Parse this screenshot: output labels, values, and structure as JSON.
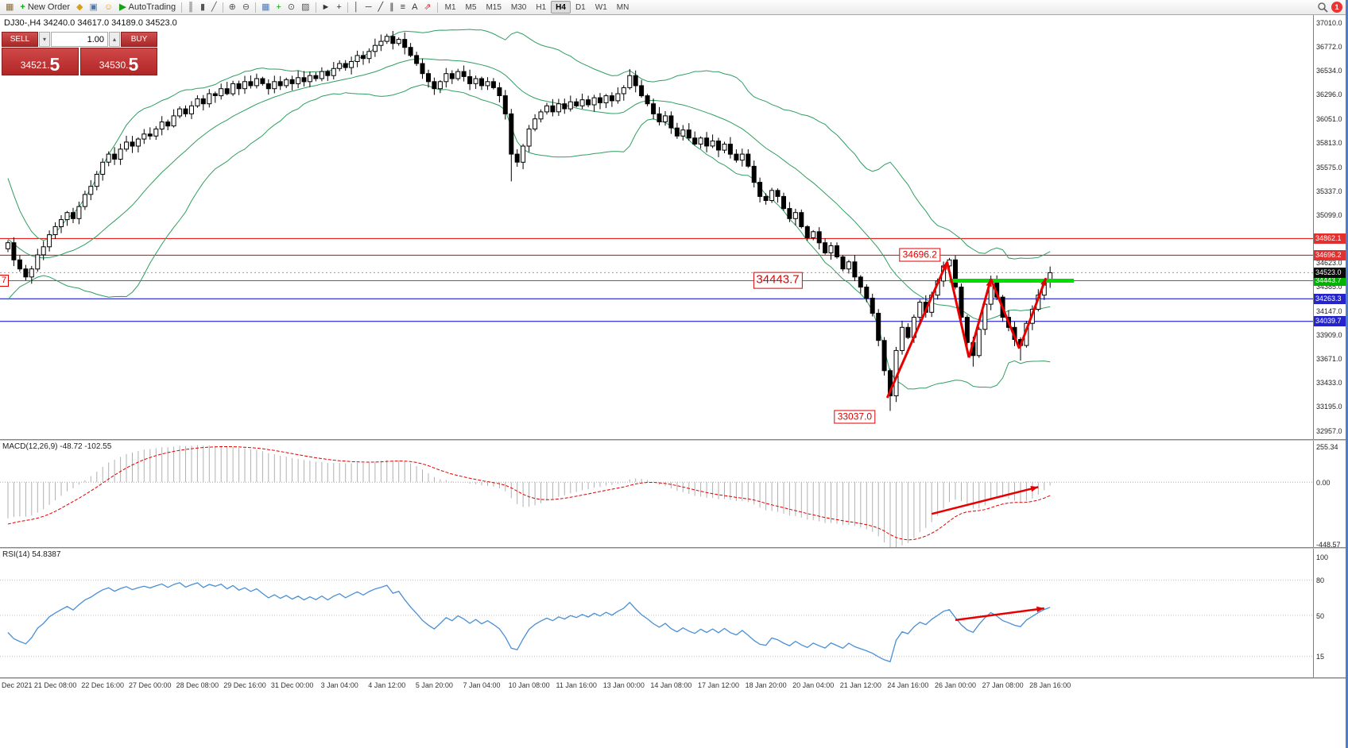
{
  "toolbar": {
    "items": [
      {
        "name": "new-chart-icon",
        "glyph": "▦",
        "color": "#8a6d3b"
      },
      {
        "name": "new-order-button",
        "label": "New Order",
        "icon": "+",
        "icon_color": "#18a018"
      },
      {
        "name": "expert-advisors-icon",
        "glyph": "◆",
        "color": "#d4a017"
      },
      {
        "name": "community-icon",
        "glyph": "▣",
        "color": "#4a7ab5"
      },
      {
        "name": "metaeditor-icon",
        "glyph": "☺",
        "color": "#e8a000"
      },
      {
        "name": "autotrading-button",
        "label": "AutoTrading",
        "icon": "▶",
        "icon_color": "#18a018"
      },
      {
        "sep": true
      },
      {
        "name": "bar-chart-icon",
        "glyph": "║",
        "color": "#555"
      },
      {
        "name": "candlestick-chart-icon",
        "glyph": "▮",
        "color": "#555"
      },
      {
        "name": "line-chart-icon",
        "glyph": "╱",
        "color": "#555"
      },
      {
        "sep": true
      },
      {
        "name": "zoom-in-icon",
        "glyph": "⊕",
        "color": "#555"
      },
      {
        "name": "zoom-out-icon",
        "glyph": "⊖",
        "color": "#555"
      },
      {
        "sep": true
      },
      {
        "name": "tile-windows-icon",
        "glyph": "▦",
        "color": "#4a7ab5"
      },
      {
        "name": "new-indicator-icon",
        "glyph": "+",
        "color": "#18a018"
      },
      {
        "name": "periods-icon",
        "glyph": "⊙",
        "color": "#555"
      },
      {
        "name": "templates-icon",
        "glyph": "▨",
        "color": "#555"
      },
      {
        "sep": true
      },
      {
        "name": "cursor-icon",
        "glyph": "►",
        "color": "#333"
      },
      {
        "name": "crosshair-icon",
        "glyph": "+",
        "color": "#333"
      },
      {
        "sep": true
      },
      {
        "name": "vertical-line-icon",
        "glyph": "│",
        "color": "#333"
      },
      {
        "name": "horizontal-line-icon",
        "glyph": "─",
        "color": "#333"
      },
      {
        "name": "trendline-icon",
        "glyph": "╱",
        "color": "#333"
      },
      {
        "name": "channel-icon",
        "glyph": "∥",
        "color": "#333"
      },
      {
        "name": "fibonacci-icon",
        "glyph": "≡",
        "color": "#333"
      },
      {
        "name": "text-label-icon",
        "glyph": "A",
        "color": "#333"
      },
      {
        "name": "arrow-tools-icon",
        "glyph": "⇗",
        "color": "#c33"
      },
      {
        "sep": true
      }
    ],
    "timeframes": [
      "M1",
      "M5",
      "M15",
      "M30",
      "H1",
      "H4",
      "D1",
      "W1",
      "MN"
    ],
    "active_timeframe": "H4",
    "notification_count": "1"
  },
  "chart": {
    "symbol_period": "DJ30-,H4",
    "ohlc_text": "34240.0 34617.0 34189.0 34523.0",
    "order_panel": {
      "sell_label": "SELL",
      "buy_label": "BUY",
      "lot_size": "1.00",
      "sell_price_main": "34521.",
      "sell_price_big": "5",
      "buy_price_main": "34530.",
      "buy_price_big": "5"
    }
  },
  "chart_data": {
    "type": "candlestick",
    "symbol": "DJ30-",
    "timeframe": "H4",
    "price_scale": {
      "top": 37010.0,
      "bottom": 32957.0,
      "labels": [
        "37010.0",
        "36772.0",
        "36534.0",
        "36296.0",
        "36051.0",
        "35813.0",
        "35575.0",
        "35337.0",
        "35099.0",
        "34623.0",
        "34385.0",
        "34147.0",
        "33909.0",
        "33671.0",
        "33433.0",
        "33195.0",
        "32957.0"
      ]
    },
    "time_labels": [
      "Dec 2021",
      "21 Dec 08:00",
      "22 Dec 16:00",
      "27 Dec 00:00",
      "28 Dec 08:00",
      "29 Dec 16:00",
      "31 Dec 00:00",
      "3 Jan 04:00",
      "4 Jan 12:00",
      "5 Jan 20:00",
      "7 Jan 04:00",
      "10 Jan 08:00",
      "11 Jan 16:00",
      "13 Jan 00:00",
      "14 Jan 08:00",
      "17 Jan 12:00",
      "18 Jan 20:00",
      "20 Jan 04:00",
      "21 Jan 12:00",
      "24 Jan 16:00",
      "26 Jan 00:00",
      "27 Jan 08:00",
      "28 Jan 16:00"
    ],
    "bars_per_label": 8,
    "warmup_closes": [
      36050,
      36000,
      36020,
      35980,
      36000,
      35950,
      35900,
      35950,
      35850,
      35900,
      35800,
      35650,
      35500,
      35300,
      35150,
      35000,
      34900,
      34800,
      34750,
      34700,
      34650,
      34720,
      34600,
      34680,
      34580,
      34640,
      34600,
      34650,
      34700,
      34760
    ],
    "closes": [
      34820,
      34650,
      34560,
      34480,
      34560,
      34700,
      34780,
      34900,
      34980,
      35050,
      35120,
      35060,
      35180,
      35300,
      35380,
      35500,
      35620,
      35700,
      35650,
      35750,
      35820,
      35780,
      35850,
      35900,
      35880,
      35950,
      36020,
      35980,
      36080,
      36150,
      36100,
      36180,
      36250,
      36200,
      36300,
      36280,
      36350,
      36300,
      36400,
      36350,
      36420,
      36380,
      36450,
      36400,
      36350,
      36420,
      36380,
      36440,
      36400,
      36460,
      36420,
      36480,
      36450,
      36520,
      36480,
      36550,
      36600,
      36560,
      36620,
      36680,
      36650,
      36720,
      36780,
      36820,
      36870,
      36800,
      36840,
      36760,
      36680,
      36600,
      36500,
      36420,
      36350,
      36420,
      36500,
      36450,
      36520,
      36470,
      36400,
      36450,
      36380,
      36420,
      36360,
      36280,
      36100,
      35700,
      35620,
      35780,
      35950,
      36050,
      36120,
      36180,
      36120,
      36200,
      36150,
      36220,
      36180,
      36240,
      36190,
      36260,
      36210,
      36280,
      36230,
      36300,
      36360,
      36480,
      36380,
      36280,
      36200,
      36100,
      36020,
      36080,
      35960,
      35880,
      35940,
      35860,
      35800,
      35860,
      35780,
      35830,
      35740,
      35800,
      35700,
      35640,
      35700,
      35580,
      35420,
      35280,
      35240,
      35340,
      35280,
      35160,
      35060,
      35120,
      34980,
      34870,
      34930,
      34820,
      34720,
      34790,
      34680,
      34560,
      34630,
      34480,
      34380,
      34270,
      34120,
      33850,
      33550,
      33300,
      33750,
      33980,
      33880,
      34080,
      34230,
      34130,
      34300,
      34440,
      34590,
      34650,
      34380,
      34080,
      33830,
      33700,
      33960,
      34210,
      34430,
      34280,
      34080,
      33980,
      33860,
      33800,
      34020,
      34160,
      34300,
      34430,
      34523
    ],
    "overrides": {
      "64": {
        "high": 36895
      },
      "85": {
        "low": 35430
      },
      "149": {
        "low": 33150
      },
      "163": {
        "low": 33590
      },
      "171": {
        "low": 33650
      }
    },
    "candle_colors": {
      "bull_fill": "#ffffff",
      "bear_fill": "#000000",
      "outline": "#000000"
    },
    "bollinger": {
      "period": 20,
      "deviation": 2,
      "color": "#2f9e5f"
    },
    "horizontal_lines": [
      {
        "text": "34862.1",
        "value": 34862.1,
        "color": "#e00000",
        "chip": "red"
      },
      {
        "text": "34696.2",
        "value": 34696.2,
        "color": "#e00000",
        "chip": "red"
      },
      {
        "text": "34443.7",
        "value": 34443.7,
        "color": "#00aa00",
        "chip": "green"
      },
      {
        "text": "34263.3",
        "value": 34263.3,
        "color": "#0000cc",
        "chip": "blue"
      },
      {
        "text": "34039.7",
        "value": 34039.7,
        "color": "#0000cc",
        "chip": "blue"
      }
    ],
    "current_price": {
      "text": "34523.0",
      "value": 34523.0,
      "chip": "black"
    },
    "thick_support_segment": {
      "value": 34443.7,
      "bar_start": 159,
      "bar_end": 180,
      "color": "#00dd00"
    },
    "macd": {
      "label": "MACD(12,26,9)",
      "values_text": "-48.72 -102.55",
      "fast": 12,
      "slow": 26,
      "signal": 9,
      "scale_labels": [
        "255.34",
        "0.00",
        "-448.57"
      ],
      "histogram_color": "#b0b0b0",
      "signal_color": "#e00000"
    },
    "rsi": {
      "label": "RSI(14)",
      "value_text": "54.8387",
      "period": 14,
      "scale_labels": [
        "100",
        "80",
        "50",
        "15"
      ],
      "levels": [
        80,
        50,
        15
      ],
      "color": "#4a8fd4"
    },
    "annotations": {
      "zigzag": {
        "color": "#e60000",
        "width": 3,
        "points": [
          [
            148.5,
            33280
          ],
          [
            158.6,
            34630
          ],
          [
            162.3,
            33680
          ],
          [
            166,
            34460
          ],
          [
            170.8,
            33770
          ],
          [
            175.3,
            34470
          ]
        ]
      },
      "price_labels": [
        {
          "text": "34696.2",
          "bar": 154,
          "price": 34700,
          "font": 12
        },
        {
          "text": "34443.7",
          "bar": 130,
          "price": 34445,
          "font": 15
        },
        {
          "text": "33037.0",
          "bar": 143,
          "price": 33090,
          "font": 12
        }
      ],
      "left_clipped_label": {
        "text": "7",
        "price": 34443.7
      },
      "macd_arrow": {
        "from_bar": 156,
        "from_value": -230,
        "to_bar": 174,
        "to_value": -35,
        "color": "#e60000"
      },
      "rsi_arrow": {
        "from_bar": 160,
        "from_value": 46,
        "to_bar": 175,
        "to_value": 56,
        "color": "#e60000"
      }
    }
  }
}
